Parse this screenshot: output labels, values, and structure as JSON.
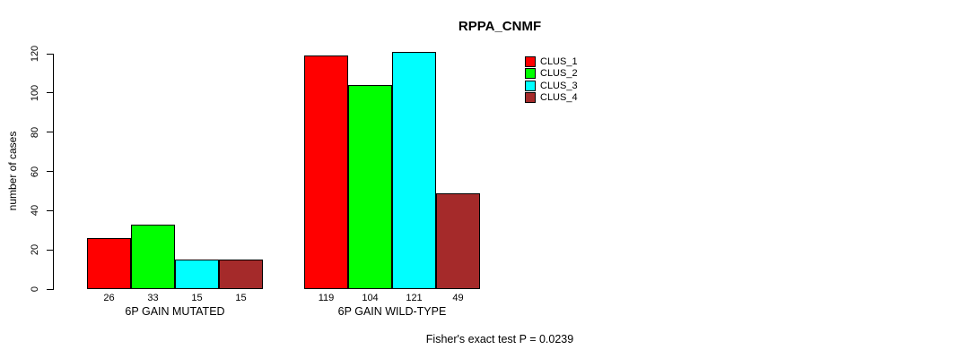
{
  "chart_data": {
    "type": "bar",
    "title": "RPPA_CNMF",
    "ylabel": "number of cases",
    "xlabel": "",
    "categories": [
      "6P GAIN MUTATED",
      "6P GAIN WILD-TYPE"
    ],
    "series": [
      {
        "name": "CLUS_1",
        "color": "#FF0000",
        "values": [
          26,
          119
        ]
      },
      {
        "name": "CLUS_2",
        "color": "#00FF00",
        "values": [
          33,
          104
        ]
      },
      {
        "name": "CLUS_3",
        "color": "#00FFFF",
        "values": [
          15,
          121
        ]
      },
      {
        "name": "CLUS_4",
        "color": "#A52A2A",
        "values": [
          15,
          49
        ]
      }
    ],
    "ylim": [
      0,
      120
    ],
    "yticks": [
      0,
      20,
      40,
      60,
      80,
      100,
      120
    ],
    "grid": false,
    "legend_position": "top-right",
    "bar_value_labels": true,
    "footnote": "Fisher's exact test P = 0.0239"
  }
}
